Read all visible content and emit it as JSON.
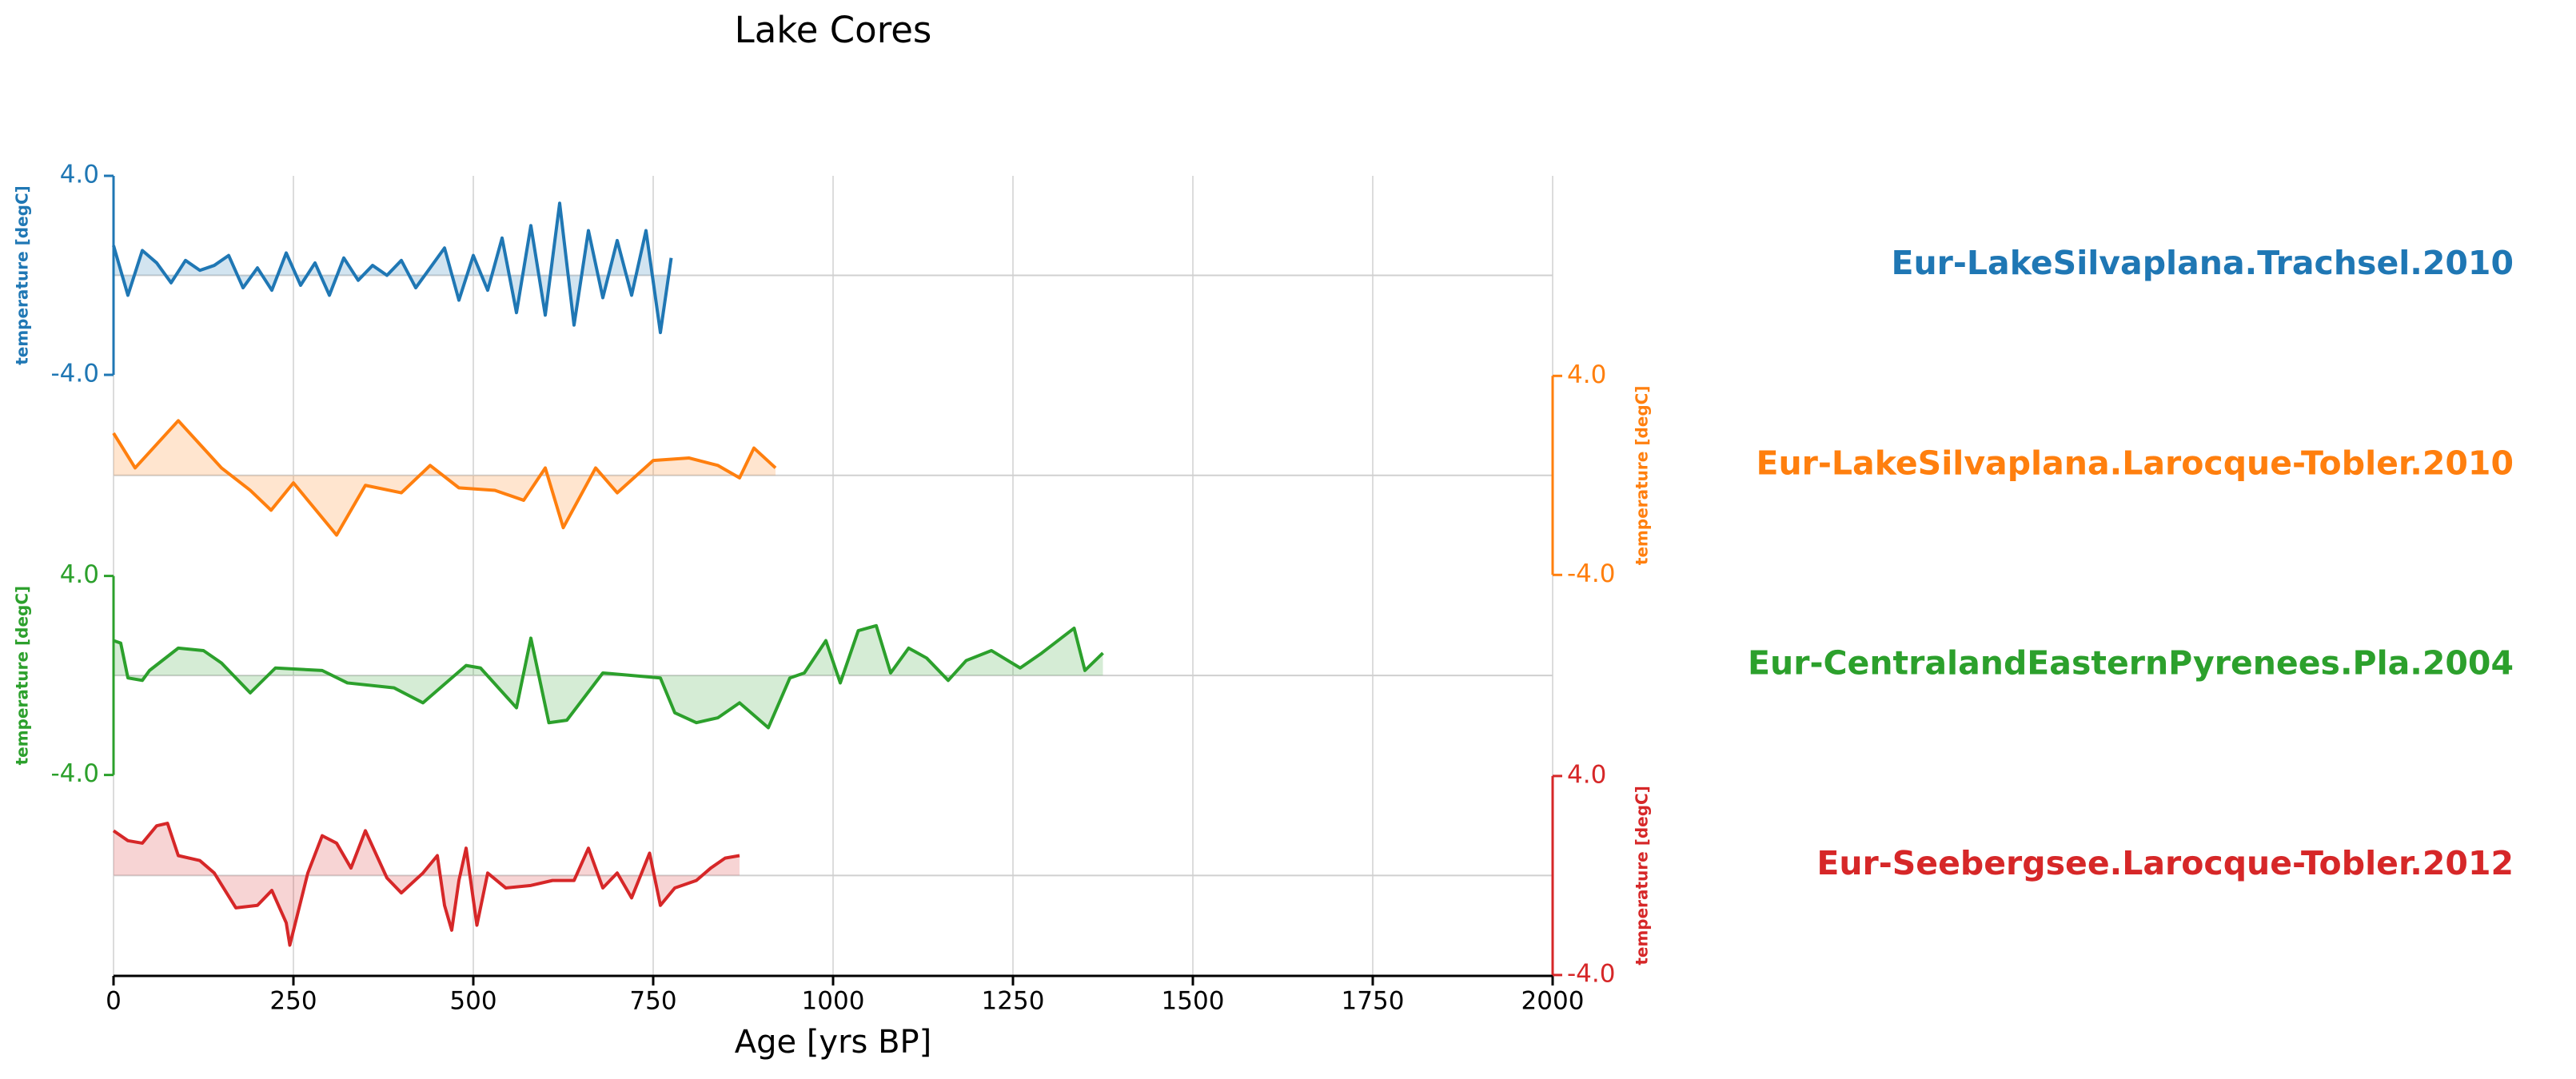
{
  "chart_data": {
    "type": "line",
    "title": "Lake Cores",
    "xlabel": "Age [yrs BP]",
    "xlim": [
      0,
      2000
    ],
    "xticks": [
      0,
      250,
      500,
      750,
      1000,
      1250,
      1500,
      1750,
      2000
    ],
    "grid": true,
    "series": [
      {
        "name": "Eur-LakeSilvaplana.Trachsel.2010",
        "color": "#1f77b4",
        "axis_side": "left",
        "ylabel": "temperature [degC]",
        "ylim": [
          -4,
          4
        ],
        "yticks": [
          {
            "value": -4,
            "label": "-4.0"
          },
          {
            "value": 4,
            "label": "4.0"
          }
        ],
        "x": [
          0,
          20,
          40,
          60,
          80,
          100,
          120,
          140,
          160,
          180,
          200,
          220,
          240,
          260,
          280,
          300,
          320,
          340,
          360,
          380,
          400,
          420,
          440,
          460,
          480,
          500,
          520,
          540,
          560,
          580,
          600,
          620,
          640,
          660,
          680,
          700,
          720,
          740,
          760,
          775
        ],
        "values": [
          1.2,
          -0.8,
          1.0,
          0.5,
          -0.3,
          0.6,
          0.2,
          0.4,
          0.8,
          -0.5,
          0.3,
          -0.6,
          0.9,
          -0.4,
          0.5,
          -0.8,
          0.7,
          -0.2,
          0.4,
          0.0,
          0.6,
          -0.5,
          0.3,
          1.1,
          -1.0,
          0.8,
          -0.6,
          1.5,
          -1.5,
          2.0,
          -1.6,
          2.9,
          -2.0,
          1.8,
          -0.9,
          1.4,
          -0.8,
          1.8,
          -2.3,
          0.7
        ]
      },
      {
        "name": "Eur-LakeSilvaplana.Larocque-Tobler.2010",
        "color": "#ff7f0e",
        "axis_side": "right",
        "ylabel": "temperature [degC]",
        "ylim": [
          -4,
          4
        ],
        "yticks": [
          {
            "value": -4,
            "label": "-4.0"
          },
          {
            "value": 4,
            "label": "4.0"
          }
        ],
        "x": [
          0,
          30,
          90,
          150,
          190,
          219,
          250,
          310,
          350,
          400,
          440,
          480,
          530,
          570,
          600,
          625,
          670,
          700,
          750,
          800,
          840,
          870,
          890,
          920
        ],
        "values": [
          1.7,
          0.3,
          2.2,
          0.3,
          -0.6,
          -1.4,
          -0.3,
          -2.4,
          -0.4,
          -0.7,
          0.4,
          -0.5,
          -0.6,
          -1.0,
          0.3,
          -2.1,
          0.3,
          -0.7,
          0.6,
          0.7,
          0.4,
          -0.1,
          1.1,
          0.3
        ]
      },
      {
        "name": "Eur-CentralandEasternPyrenees.Pla.2004",
        "color": "#2ca02c",
        "axis_side": "left",
        "ylabel": "temperature [degC]",
        "ylim": [
          -4,
          4
        ],
        "yticks": [
          {
            "value": -4,
            "label": "-4.0"
          },
          {
            "value": 4,
            "label": "4.0"
          }
        ],
        "x": [
          0,
          10,
          20,
          40,
          50,
          90,
          125,
          150,
          190,
          225,
          290,
          325,
          390,
          430,
          490,
          510,
          560,
          580,
          605,
          630,
          680,
          760,
          780,
          810,
          840,
          870,
          910,
          940,
          960,
          990,
          1010,
          1035,
          1060,
          1080,
          1105,
          1130,
          1160,
          1185,
          1220,
          1260,
          1290,
          1335,
          1350,
          1375
        ],
        "values": [
          1.4,
          1.3,
          -0.1,
          -0.2,
          0.2,
          1.1,
          1.0,
          0.5,
          -0.7,
          0.3,
          0.2,
          -0.3,
          -0.5,
          -1.1,
          0.4,
          0.3,
          -1.3,
          1.5,
          -1.9,
          -1.8,
          0.1,
          -0.1,
          -1.5,
          -1.9,
          -1.7,
          -1.1,
          -2.1,
          -0.1,
          0.1,
          1.4,
          -0.3,
          1.8,
          2.0,
          0.1,
          1.1,
          0.7,
          -0.2,
          0.6,
          1.0,
          0.3,
          0.9,
          1.9,
          0.2,
          0.9
        ]
      },
      {
        "name": "Eur-Seebergsee.Larocque-Tobler.2012",
        "color": "#d62728",
        "axis_side": "right",
        "ylabel": "temperature [degC]",
        "ylim": [
          -4,
          4
        ],
        "yticks": [
          {
            "value": -4,
            "label": "-4.0"
          },
          {
            "value": 4,
            "label": "4.0"
          }
        ],
        "x": [
          0,
          20,
          40,
          60,
          75,
          90,
          120,
          140,
          170,
          200,
          220,
          240,
          245,
          270,
          290,
          310,
          330,
          350,
          380,
          400,
          430,
          450,
          460,
          470,
          480,
          490,
          505,
          520,
          545,
          580,
          610,
          640,
          660,
          680,
          700,
          720,
          745,
          760,
          780,
          810,
          830,
          850,
          870
        ],
        "values": [
          1.8,
          1.4,
          1.3,
          2.0,
          2.1,
          0.8,
          0.6,
          0.1,
          -1.3,
          -1.2,
          -0.6,
          -1.9,
          -2.8,
          0.1,
          1.6,
          1.3,
          0.3,
          1.8,
          -0.1,
          -0.7,
          0.1,
          0.8,
          -1.2,
          -2.2,
          -0.2,
          1.1,
          -2.0,
          0.1,
          -0.5,
          -0.4,
          -0.2,
          -0.2,
          1.1,
          -0.5,
          0.1,
          -0.9,
          0.9,
          -1.2,
          -0.5,
          -0.2,
          0.3,
          0.7,
          0.8
        ]
      }
    ]
  }
}
